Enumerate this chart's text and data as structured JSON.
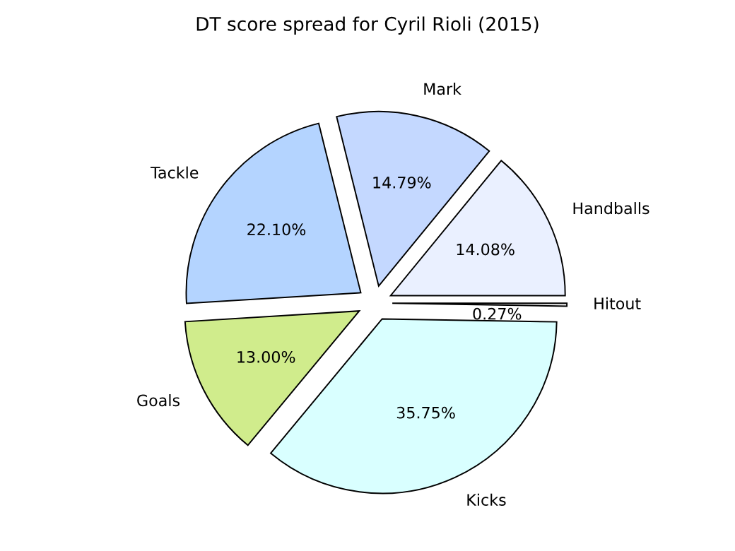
{
  "chart_data": {
    "type": "pie",
    "title": "DT score spread for Cyril Rioli (2015)",
    "categories": [
      "Handballs",
      "Mark",
      "Tackle",
      "Goals",
      "Kicks",
      "Hitout"
    ],
    "values": [
      14.08,
      14.79,
      22.1,
      13.0,
      35.75,
      0.27
    ],
    "value_labels": [
      "14.08%",
      "14.79%",
      "22.10%",
      "13.00%",
      "35.75%",
      "0.27%"
    ],
    "colors": [
      "#eaf0ff",
      "#c4d8ff",
      "#b4d4ff",
      "#d0ec8c",
      "#d9ffff",
      "#f0f0f0"
    ],
    "legend": false
  }
}
